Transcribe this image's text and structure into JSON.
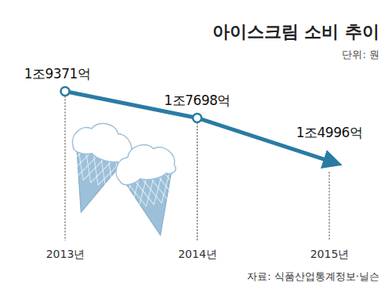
{
  "chart_data": {
    "type": "line",
    "title": "아이스크림 소비 추이",
    "subtitle": "단위: 원",
    "source": "자료: 식품산업통계정보·닐슨",
    "categories": [
      "2013년",
      "2014년",
      "2015년"
    ],
    "values": [
      19371,
      17698,
      14996
    ],
    "value_labels": [
      "1조9371억",
      "1조7698억",
      "1조4996억"
    ],
    "color": "#2a7ba3",
    "ylim": [
      10000,
      22000
    ],
    "data_labels": true,
    "tick_labels": "x"
  }
}
